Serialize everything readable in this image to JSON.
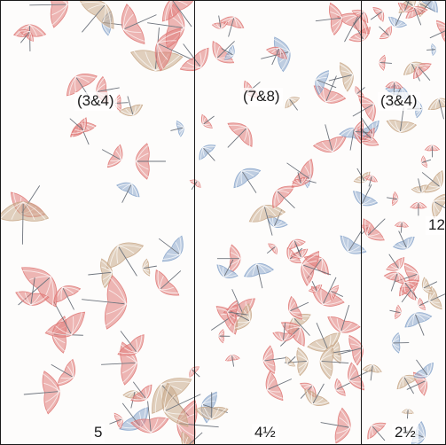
{
  "panels": [
    {
      "scale_label": "(3&4)",
      "size_label": "5",
      "motif_scale": "large",
      "motif_icon": "umbrella-icon"
    },
    {
      "scale_label": "(7&8)",
      "size_label": "4½",
      "motif_scale": "medium",
      "motif_icon": "umbrella-icon"
    },
    {
      "scale_label": "(3&4)",
      "size_label": "2½",
      "motif_scale": "small",
      "motif_icon": "umbrella-icon"
    }
  ],
  "edge_label": "12",
  "colors": {
    "red": "#e07a78",
    "blue": "#8aa6cc",
    "tan": "#c9a98a",
    "line": "#1a1a1a",
    "background": "#fdfcfb"
  }
}
